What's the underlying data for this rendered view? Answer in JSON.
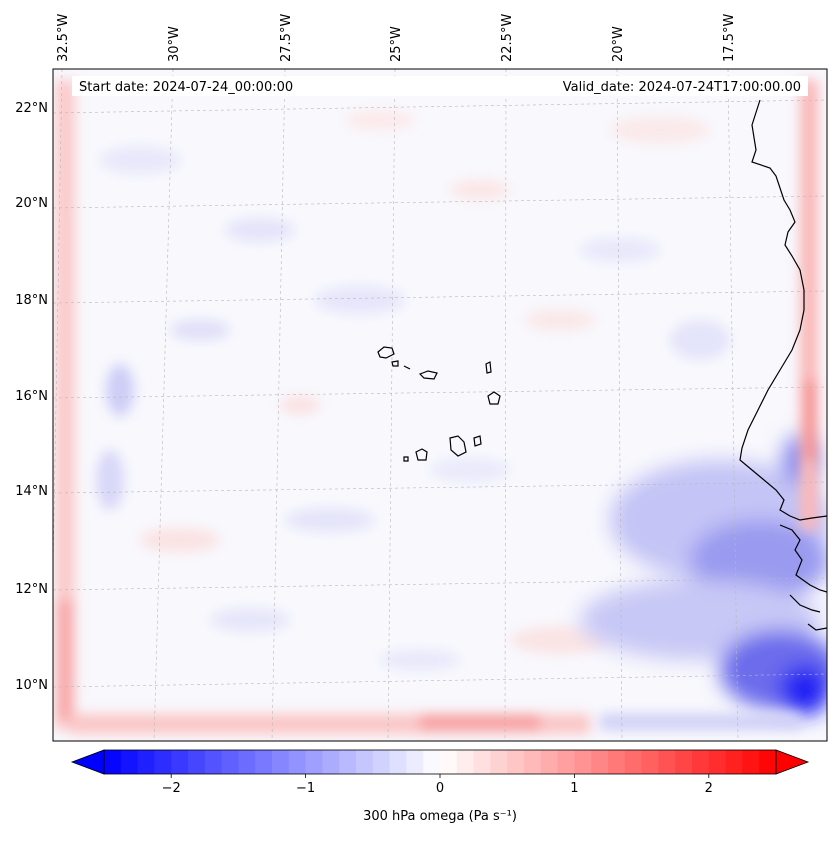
{
  "map": {
    "start_date_label": "Start date: 2024-07-24_00:00:00",
    "valid_date_label": "Valid_date: 2024-07-24T17:00:00.00",
    "longitude_labels": [
      "32.5°W",
      "30°W",
      "27.5°W",
      "25°W",
      "22.5°W",
      "20°W",
      "17.5°W"
    ],
    "latitude_labels": [
      "22°N",
      "20°N",
      "18°N",
      "16°N",
      "14°N",
      "12°N",
      "10°N"
    ],
    "field": "300 hPa omega",
    "units": "Pa s⁻¹"
  },
  "colorbar": {
    "ticks": [
      "−2",
      "−1",
      "0",
      "1",
      "2"
    ],
    "tick_values": [
      -2,
      -1,
      0,
      1,
      2
    ],
    "range": [
      -2.5,
      2.5
    ],
    "label": "300 hPa omega (Pa s⁻¹)",
    "low_color": "#0000ff",
    "mid_color": "#ffffff",
    "high_color": "#ff0000"
  }
}
